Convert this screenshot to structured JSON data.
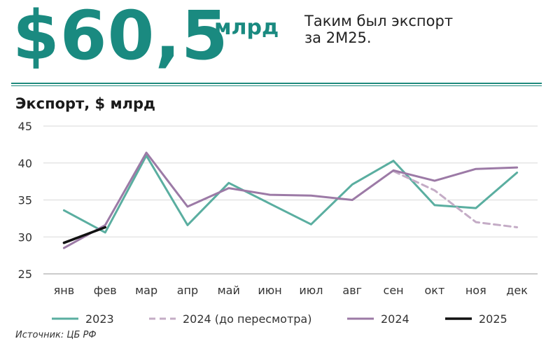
{
  "headline": {
    "value": "$60,5",
    "unit": "млрд",
    "caption": "Таким был экспорт\nза 2М25."
  },
  "source": "Источник: ЦБ РФ",
  "colors": {
    "accent": "#1a8a80",
    "s2023": "#5aaea0",
    "s2024_pre": "#c4acc6",
    "s2024": "#9c7aa6",
    "s2025": "#111111"
  },
  "chart_data": {
    "type": "line",
    "title": "Экспорт, $ млрд",
    "categories": [
      "янв",
      "фев",
      "мар",
      "апр",
      "май",
      "июн",
      "июл",
      "авг",
      "сен",
      "окт",
      "ноя",
      "дек"
    ],
    "ylim": [
      25,
      45
    ],
    "yticks": [
      25,
      30,
      35,
      40,
      45
    ],
    "grid": true,
    "legend": "bottom",
    "series": [
      {
        "name": "2023",
        "color": "#5aaea0",
        "dash": false,
        "values": [
          33.6,
          30.6,
          41.0,
          31.6,
          37.3,
          34.5,
          31.7,
          37.1,
          40.3,
          34.3,
          33.9,
          38.7
        ]
      },
      {
        "name": "2024 (до пересмотра)",
        "color": "#c4acc6",
        "dash": true,
        "values": [
          null,
          null,
          null,
          null,
          null,
          null,
          null,
          null,
          38.9,
          36.3,
          32.0,
          31.3
        ]
      },
      {
        "name": "2024",
        "color": "#9c7aa6",
        "dash": false,
        "values": [
          28.5,
          31.6,
          41.4,
          34.1,
          36.6,
          35.7,
          35.6,
          35.0,
          39.0,
          37.6,
          39.2,
          39.4
        ]
      },
      {
        "name": "2025",
        "color": "#111111",
        "dash": false,
        "values": [
          29.2,
          31.3,
          null,
          null,
          null,
          null,
          null,
          null,
          null,
          null,
          null,
          null
        ]
      }
    ]
  }
}
